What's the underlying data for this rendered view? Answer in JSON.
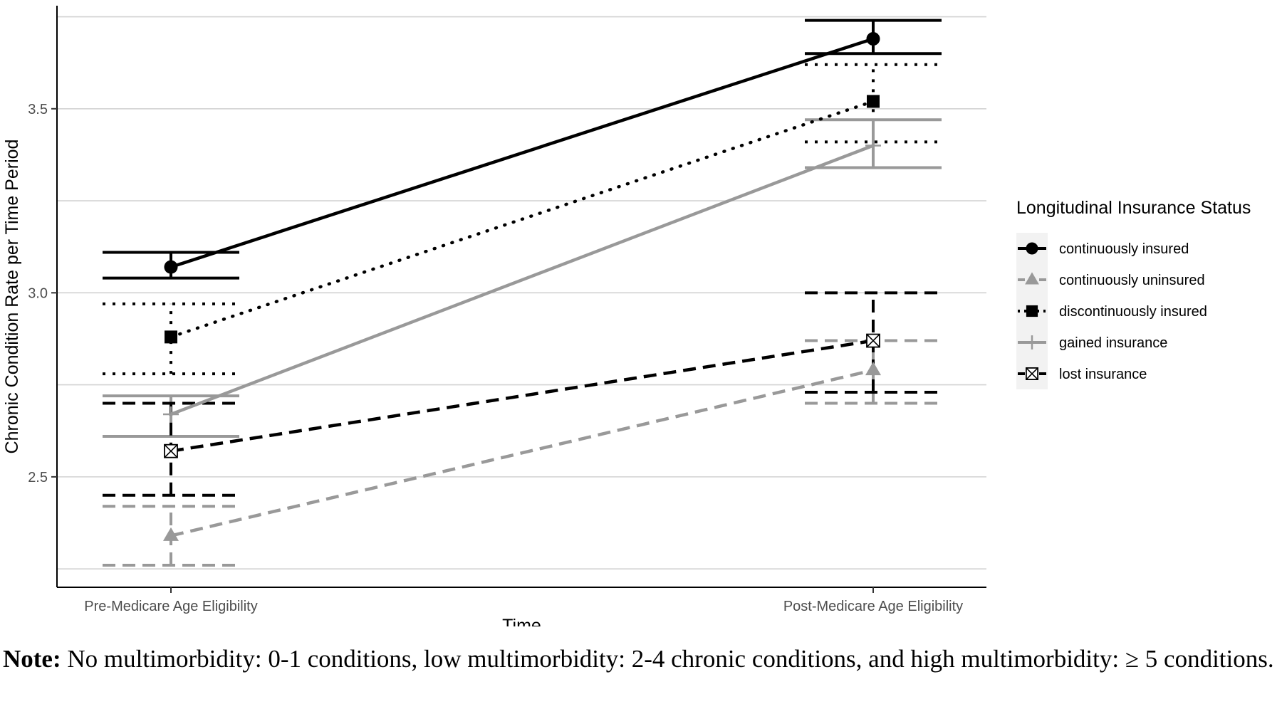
{
  "chart_data": {
    "type": "line",
    "xlabel": "Time",
    "ylabel": "Chronic Condition Rate per Time Period",
    "categories": [
      "Pre-Medicare Age Eligibility",
      "Post-Medicare Age Eligibility"
    ],
    "ylim": [
      2.2,
      3.78
    ],
    "yticks": [
      2.5,
      3.0,
      3.5
    ],
    "ytick_labels": [
      "2.5",
      "3.0",
      "3.5"
    ],
    "grid": true,
    "legend_position": "right",
    "legend_title": "Longitudinal Insurance Status",
    "series": [
      {
        "name": "continuously insured",
        "values": [
          3.07,
          3.69
        ],
        "lower": [
          3.04,
          3.65
        ],
        "upper": [
          3.11,
          3.74
        ],
        "color": "#000000",
        "line": "solid",
        "marker": "circle"
      },
      {
        "name": "continuously uninsured",
        "values": [
          2.34,
          2.79
        ],
        "lower": [
          2.26,
          2.7
        ],
        "upper": [
          2.42,
          2.87
        ],
        "color": "#999999",
        "line": "dashed",
        "marker": "triangle"
      },
      {
        "name": "discontinuously insured",
        "values": [
          2.88,
          3.52
        ],
        "lower": [
          2.78,
          3.41
        ],
        "upper": [
          2.97,
          3.62
        ],
        "color": "#000000",
        "line": "dotted",
        "marker": "square"
      },
      {
        "name": "gained insurance",
        "values": [
          2.67,
          3.4
        ],
        "lower": [
          2.61,
          3.34
        ],
        "upper": [
          2.72,
          3.47
        ],
        "color": "#999999",
        "line": "solid",
        "marker": "plus"
      },
      {
        "name": "lost insurance",
        "values": [
          2.57,
          2.87
        ],
        "lower": [
          2.45,
          2.73
        ],
        "upper": [
          2.7,
          3.0
        ],
        "color": "#000000",
        "line": "dashed",
        "marker": "boxcross"
      }
    ]
  },
  "note": {
    "label": "Note:",
    "text": "No multimorbidity: 0-1 conditions, low multimorbidity: 2-4 chronic conditions, and high multimorbidity: ≥ 5 conditions."
  }
}
